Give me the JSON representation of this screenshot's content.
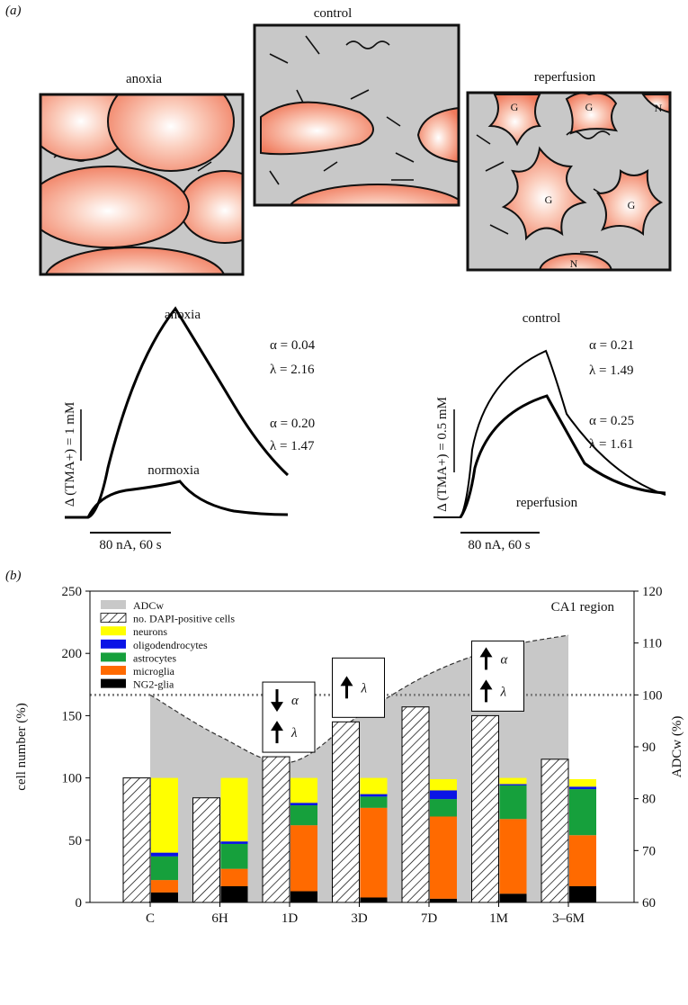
{
  "panel_a": {
    "label": "(a)",
    "schematics": [
      {
        "title": "anoxia"
      },
      {
        "title": "control"
      },
      {
        "title": "reperfusion",
        "cell_labels": [
          "G",
          "G",
          "N",
          "G",
          "G",
          "N"
        ]
      }
    ],
    "traces": [
      {
        "scale": "Δ (TMA+) = 1 mM",
        "time_bar": "80 nA, 60 s",
        "curves": [
          {
            "name": "anoxia",
            "params": [
              "α = 0.04",
              "λ = 2.16"
            ]
          },
          {
            "name": "normoxia",
            "params": [
              "α = 0.20",
              "λ = 1.47"
            ]
          }
        ]
      },
      {
        "scale": "Δ (TMA+) = 0.5 mM",
        "time_bar": "80 nA, 60 s",
        "curves": [
          {
            "name": "control",
            "params": [
              "α = 0.21",
              "λ = 1.49"
            ]
          },
          {
            "name": "reperfusion",
            "params": [
              "α = 0.25",
              "λ = 1.61"
            ]
          }
        ]
      }
    ]
  },
  "panel_b_label": "(b)",
  "chart_data": {
    "type": "bar",
    "title": "CA1 region",
    "y_label": "cell number (%)",
    "y2_label": "ADCw (%)",
    "categories": [
      "C",
      "6H",
      "1D",
      "3D",
      "7D",
      "1M",
      "3–6M"
    ],
    "ylim": [
      0,
      250
    ],
    "yticks": [
      0,
      50,
      100,
      150,
      200,
      250
    ],
    "y2lim": [
      60,
      120
    ],
    "y2ticks": [
      60,
      70,
      80,
      90,
      100,
      110,
      120
    ],
    "y2_reference": 100,
    "series": [
      {
        "name": "ADCw",
        "color": "#c8c8c8",
        "type": "area",
        "axis": "y2",
        "values": [
          100,
          92,
          87,
          96,
          104,
          109,
          111.5
        ]
      },
      {
        "name": "no. DAPI-positive cells",
        "pattern": "hatch",
        "values": [
          100,
          84,
          117,
          145,
          157,
          150,
          115
        ]
      },
      {
        "name": "neurons",
        "color": "#ffff00",
        "stacked": true,
        "values": [
          60,
          51,
          20,
          13,
          9,
          5,
          6
        ]
      },
      {
        "name": "oligodendrocytes",
        "color": "#0a14e6",
        "stacked": true,
        "values": [
          3,
          2,
          2,
          2,
          7,
          1,
          2
        ]
      },
      {
        "name": "astrocytes",
        "color": "#16a03c",
        "stacked": true,
        "values": [
          19,
          20,
          16,
          9,
          14,
          27,
          37
        ]
      },
      {
        "name": "microglia",
        "color": "#ff6a00",
        "stacked": true,
        "values": [
          10,
          14,
          53,
          72,
          66,
          60,
          41
        ]
      },
      {
        "name": "NG2-glia",
        "color": "#000000",
        "stacked": true,
        "values": [
          8,
          13,
          9,
          4,
          3,
          7,
          13
        ]
      }
    ],
    "annotations": [
      {
        "category": "1D",
        "items": [
          {
            "symbol": "α",
            "direction": "down"
          },
          {
            "symbol": "λ",
            "direction": "up"
          }
        ]
      },
      {
        "category": "3D",
        "items": [
          {
            "symbol": "λ",
            "direction": "up"
          }
        ]
      },
      {
        "category": "1M",
        "items": [
          {
            "symbol": "α",
            "direction": "up"
          },
          {
            "symbol": "λ",
            "direction": "up"
          }
        ]
      }
    ]
  }
}
